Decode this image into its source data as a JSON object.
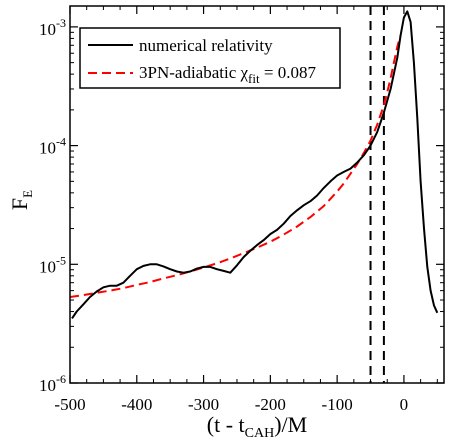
{
  "chart_data": {
    "type": "line",
    "title": "",
    "xlabel": {
      "main": "(t - t",
      "sub": "CAH",
      "tail": ")/M"
    },
    "ylabel": {
      "main": "F",
      "sub": "E"
    },
    "xlim": [
      -500,
      60
    ],
    "ylim": [
      1e-06,
      0.0015
    ],
    "yscale": "log",
    "grid": false,
    "legend_position": "top-left",
    "x_ticks": [
      -500,
      -400,
      -300,
      -200,
      -100,
      0
    ],
    "x_tick_labels": [
      "-500",
      "-400",
      "-300",
      "-200",
      "-100",
      "0"
    ],
    "y_ticks": [
      {
        "value": 1e-06,
        "base": "10",
        "exp": "-6"
      },
      {
        "value": 1e-05,
        "base": "10",
        "exp": "-5"
      },
      {
        "value": 0.0001,
        "base": "10",
        "exp": "-4"
      },
      {
        "value": 0.001,
        "base": "10",
        "exp": "-3"
      }
    ],
    "vertical_lines": [
      -50,
      -30
    ],
    "series": [
      {
        "name": "numerical relativity",
        "color": "#000000",
        "dash": "solid",
        "x": [
          -497,
          -490,
          -480,
          -470,
          -460,
          -450,
          -440,
          -430,
          -420,
          -410,
          -400,
          -390,
          -380,
          -370,
          -360,
          -350,
          -340,
          -330,
          -320,
          -310,
          -300,
          -290,
          -280,
          -270,
          -260,
          -250,
          -240,
          -230,
          -220,
          -210,
          -200,
          -190,
          -180,
          -170,
          -160,
          -150,
          -140,
          -130,
          -120,
          -110,
          -100,
          -90,
          -80,
          -70,
          -60,
          -50,
          -40,
          -30,
          -20,
          -10,
          -5,
          0,
          5,
          10,
          15,
          20,
          25,
          30,
          35,
          40,
          45,
          50
        ],
        "y": [
          3.5e-06,
          4e-06,
          4.6e-06,
          5.3e-06,
          5.9e-06,
          6.4e-06,
          6.6e-06,
          6.6e-06,
          7e-06,
          8e-06,
          9.1e-06,
          9.7e-06,
          1e-05,
          1e-05,
          9.6e-06,
          9.1e-06,
          8.7e-06,
          8.5e-06,
          8.7e-06,
          9.2e-06,
          9.5e-06,
          9.5e-06,
          9.1e-06,
          8.8e-06,
          8.5e-06,
          9.8e-06,
          1.15e-05,
          1.3e-05,
          1.45e-05,
          1.6e-05,
          1.8e-05,
          1.95e-05,
          2.2e-05,
          2.55e-05,
          2.85e-05,
          3.15e-05,
          3.4e-05,
          3.8e-05,
          4.4e-05,
          5e-05,
          5.6e-05,
          6e-05,
          6.4e-05,
          7.2e-05,
          8.3e-05,
          0.0001,
          0.00013,
          0.00019,
          0.0003,
          0.00055,
          0.00085,
          0.0012,
          0.00135,
          0.0011,
          0.0005,
          0.00017,
          5e-05,
          2e-05,
          9.5e-06,
          6e-06,
          4.5e-06,
          3.9e-06
        ]
      },
      {
        "name": "3PN-adiabatic χ",
        "name_sub": "fit",
        "name_tail": " = 0.087",
        "color": "#ff0000",
        "dash": "dashed",
        "x": [
          -500,
          -480,
          -460,
          -440,
          -420,
          -400,
          -380,
          -360,
          -340,
          -320,
          -300,
          -280,
          -260,
          -240,
          -220,
          -200,
          -180,
          -160,
          -140,
          -120,
          -100,
          -90,
          -80,
          -70,
          -60,
          -50,
          -40,
          -30,
          -25,
          -20,
          -15,
          -10,
          -5
        ],
        "y": [
          5.3e-06,
          5.5e-06,
          5.75e-06,
          6e-06,
          6.3e-06,
          6.7e-06,
          7.1e-06,
          7.6e-06,
          8.1e-06,
          8.7e-06,
          9.4e-06,
          1.02e-05,
          1.12e-05,
          1.24e-05,
          1.38e-05,
          1.55e-05,
          1.78e-05,
          2.08e-05,
          2.5e-05,
          3.1e-05,
          4.1e-05,
          4.8e-05,
          5.8e-05,
          7e-05,
          8.7e-05,
          0.00011,
          0.00015,
          0.00022,
          0.00028,
          0.00037,
          0.0005,
          0.00068,
          0.00085
        ]
      }
    ]
  }
}
